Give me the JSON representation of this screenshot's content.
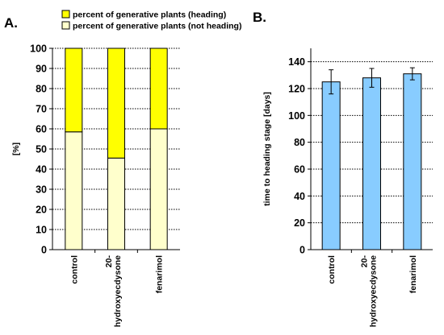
{
  "chart_data": [
    {
      "panel_label": "A.",
      "type": "bar",
      "stacked": true,
      "categories": [
        "control",
        "20-hydroxyecdysone",
        "fenarimol"
      ],
      "category_lines": [
        [
          "control"
        ],
        [
          "20-",
          "hydroxyecdysone"
        ],
        [
          "fenarimol"
        ]
      ],
      "series": [
        {
          "name": "percent of generative plants (not heading)",
          "values": [
            58.5,
            45.5,
            60
          ],
          "color": "#ffffcc"
        },
        {
          "name": "percent of generative plants (heading)",
          "values": [
            41.5,
            54.5,
            40
          ],
          "color": "#ffff00"
        }
      ],
      "ylabel": "[%]",
      "ylim": [
        0,
        100
      ],
      "yticks": [
        "0",
        "10",
        "20",
        "30",
        "40",
        "50",
        "60",
        "70",
        "80",
        "90",
        "100"
      ],
      "grid": true,
      "legend": "top"
    },
    {
      "panel_label": "B.",
      "type": "bar",
      "categories": [
        "control",
        "20-hydroxyecdysone",
        "fenarimol"
      ],
      "category_lines": [
        [
          "control"
        ],
        [
          "20-",
          "hydroxyecdysone"
        ],
        [
          "fenarimol"
        ]
      ],
      "values": [
        125,
        128,
        131
      ],
      "errors": [
        9,
        7,
        4.5
      ],
      "color": "#88ccff",
      "ylabel": "time to heading stage [days]",
      "ylim": [
        0,
        150
      ],
      "yticks": [
        "0",
        "20",
        "40",
        "60",
        "80",
        "100",
        "120",
        "140"
      ],
      "grid": true
    }
  ]
}
